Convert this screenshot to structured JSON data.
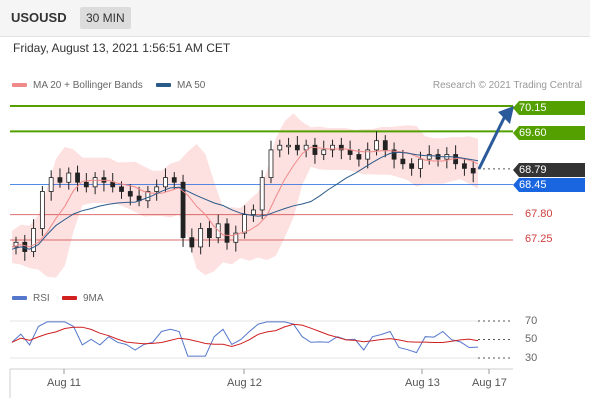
{
  "header": {
    "symbol": "USOUSD",
    "interval": "30 MIN"
  },
  "timestamp": "Friday, August 13, 2021 1:56:51 AM CET",
  "legend": {
    "ma20_bollinger": "MA 20 + Bollinger Bands",
    "ma50": "MA 50",
    "ma20_color": "#f08a8a",
    "ma50_color": "#2a5a8a"
  },
  "credit": "Research © 2021 Trading Central",
  "price_levels": {
    "resistance_2": "70.15",
    "resistance_1": "69.60",
    "current": "68.79",
    "pivot": "68.45",
    "support_1": "67.80",
    "support_2": "67.25"
  },
  "colors": {
    "resistance": "#54a000",
    "pivot": "#1a66e0",
    "support": "#d04040",
    "current": "#333333",
    "arrow": "#2a5a9a",
    "band_fill": "#fde0e0"
  },
  "rsi_legend": {
    "rsi": "RSI",
    "ma9": "9MA",
    "rsi_color": "#5577cc",
    "ma9_color": "#d02020"
  },
  "rsi_ticks": [
    "70",
    "50",
    "30"
  ],
  "date_ticks": [
    "Aug 11",
    "Aug 12",
    "Aug 13",
    "Aug 17"
  ],
  "chart_data": [
    {
      "type": "candlestick",
      "title": "",
      "y_unit": "USD",
      "levels": [
        70.15,
        69.6,
        68.79,
        68.45,
        67.8,
        67.25
      ],
      "x": [
        "Aug 11",
        "Aug 12",
        "Aug 13",
        "Aug 17"
      ],
      "price_path": [
        67.1,
        67.2,
        67.0,
        67.5,
        68.3,
        68.6,
        68.5,
        68.7,
        68.5,
        68.4,
        68.6,
        68.5,
        68.4,
        68.3,
        68.2,
        68.1,
        68.3,
        68.4,
        68.6,
        68.5,
        67.3,
        67.1,
        67.5,
        67.3,
        67.6,
        67.2,
        67.4,
        67.8,
        67.9,
        68.6,
        69.2,
        69.3,
        69.3,
        69.2,
        69.3,
        69.1,
        69.2,
        69.3,
        69.2,
        69.1,
        69.0,
        69.2,
        69.4,
        69.2,
        69.0,
        68.9,
        68.8,
        69.0,
        69.1,
        69.0,
        69.1,
        68.9,
        68.8,
        68.7
      ]
    },
    {
      "type": "line",
      "title": "",
      "series": [
        {
          "name": "RSI"
        },
        {
          "name": "9MA"
        }
      ],
      "ylim": [
        30,
        70
      ],
      "y_ticks": [
        70,
        50,
        30
      ]
    }
  ]
}
